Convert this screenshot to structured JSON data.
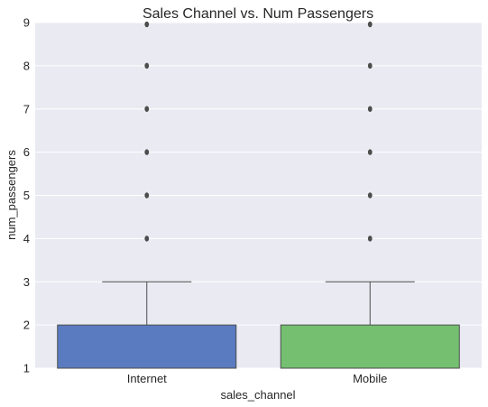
{
  "chart_data": {
    "type": "box",
    "title": "Sales Channel vs. Num Passengers",
    "xlabel": "sales_channel",
    "ylabel": "num_passengers",
    "ylim": [
      1,
      9
    ],
    "yticks": [
      "1",
      "2",
      "3",
      "4",
      "5",
      "6",
      "7",
      "8",
      "9"
    ],
    "grid": true,
    "categories": [
      "Internet",
      "Mobile"
    ],
    "boxes": [
      {
        "name": "Internet",
        "color": "#5a7bc0",
        "min": 1,
        "q1": 1,
        "median": 1,
        "q3": 2,
        "whisker_high": 3,
        "outliers": [
          4,
          5,
          6,
          7,
          8,
          9
        ]
      },
      {
        "name": "Mobile",
        "color": "#74c070",
        "min": 1,
        "q1": 1,
        "median": 1,
        "q3": 2,
        "whisker_high": 3,
        "outliers": [
          4,
          5,
          6,
          7,
          8,
          9
        ]
      }
    ]
  },
  "colors": {
    "plot_bg": "#eaeaf2",
    "grid": "#ffffff",
    "line": "#4d4d4d"
  }
}
